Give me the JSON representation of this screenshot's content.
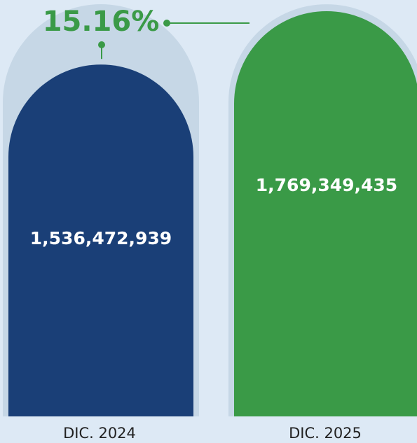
{
  "chart_data": {
    "type": "bar",
    "categories": [
      "DIC. 2024",
      "DIC. 2025"
    ],
    "values": [
      1536472939,
      1769349435
    ],
    "value_labels": [
      "1,536,472,939",
      "1,769,349,435"
    ],
    "colors": [
      "#1a3f77",
      "#3a9a47"
    ],
    "track_color": "#c6d7e6",
    "annotation": "15.16%",
    "annotation_color": "#3a9a47"
  }
}
